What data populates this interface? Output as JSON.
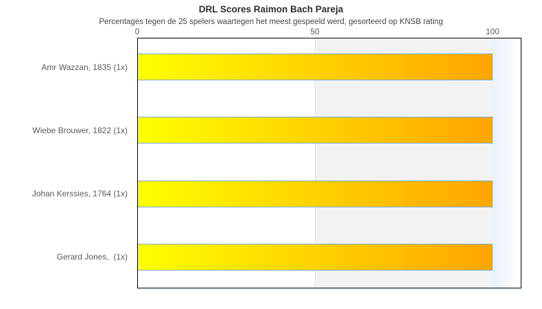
{
  "chart_data": {
    "type": "bar",
    "orientation": "horizontal",
    "title": "DRL Scores Raimon Bach Pareja",
    "subtitle": "Percentages tegen de 25 spelers waartegen het meest gespeeld werd, gesorteerd op KNSB rating",
    "categories": [
      "Amr Wazzan, 1835 (1x)",
      "Wiebe Brouwer, 1822 (1x)",
      "Johan Kerssies, 1764 (1x)",
      "Gerard Jones,  (1x)"
    ],
    "values": [
      100,
      100,
      100,
      100
    ],
    "xticks": [
      "0",
      "50",
      "100"
    ],
    "xtick_values": [
      0,
      50,
      100
    ],
    "xlim": [
      0,
      108
    ],
    "ylabel": "",
    "xlabel": "",
    "legend": "none",
    "grid": "vertical gridline at 50; shaded band from 50 to 100",
    "colors": {
      "bar_gradient_start": "#ffff00",
      "bar_gradient_end": "#ffa500",
      "bar_border": "#74aadb",
      "band_light": "#ffffff",
      "band_shaded": "#f2f2f2",
      "right_band_gradient_start": "#e9f1f8",
      "plot_border": "#000000",
      "title_color": "#2e2e2e",
      "label_color": "#595959"
    }
  }
}
